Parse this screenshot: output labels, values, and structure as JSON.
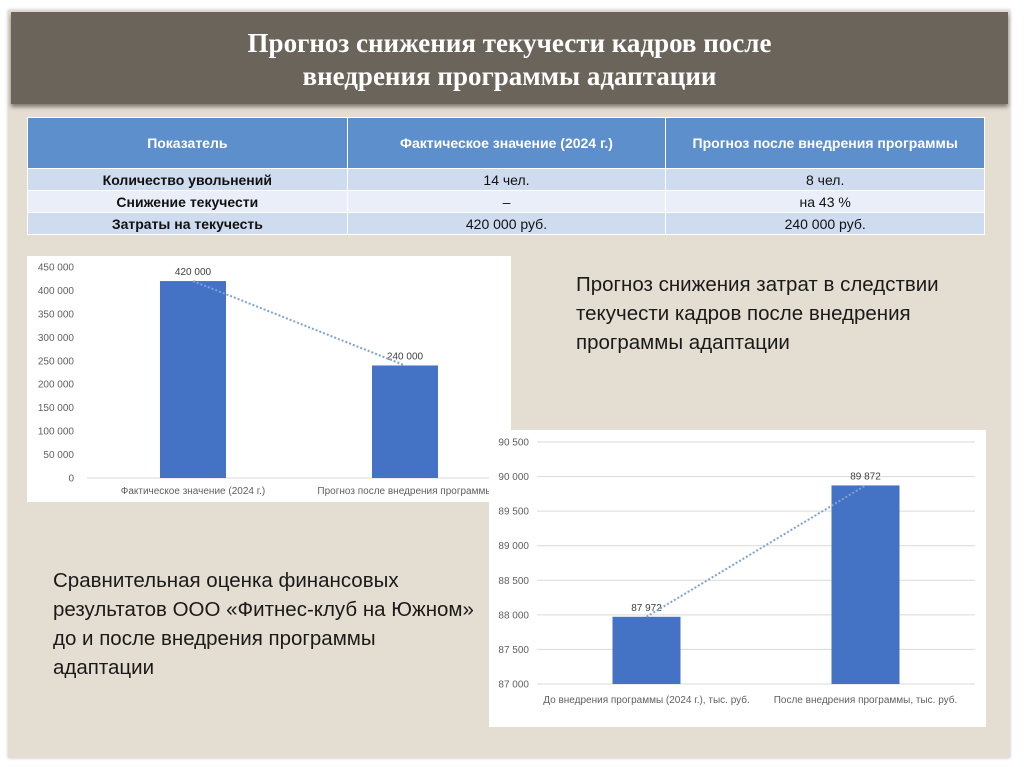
{
  "title": {
    "line1": "Прогноз снижения текучести кадров после",
    "line2": "внедрения программы адаптации"
  },
  "table": {
    "headers": [
      "Показатель",
      "Фактическое значение (2024 г.)",
      "Прогноз после внедрения программы"
    ],
    "rows": [
      [
        "Количество увольнений",
        "14 чел.",
        "8 чел."
      ],
      [
        "Снижение текучести",
        "–",
        "на 43 %"
      ],
      [
        "Затраты на текучесть",
        "420 000 руб.",
        "240 000 руб."
      ]
    ]
  },
  "note_right": "Прогноз снижения затрат в следствии текучести кадров после внедрения программы адаптации",
  "note_left": {
    "line1": "Сравнительная оценка финансовых",
    "line2": "результатов ООО «Фитнес-клуб на Южном»",
    "line3": "до и после внедрения программы",
    "line4": "адаптации"
  },
  "colors": {
    "bar": "#4472c4",
    "header": "#5d8fcd",
    "title_bg": "#6b645a",
    "slide_bg": "#e4ddd1"
  },
  "chart_data": [
    {
      "type": "bar",
      "categories": [
        "Фактическое значение (2024 г.)",
        "Прогноз после внедрения программы"
      ],
      "values": [
        420000,
        240000
      ],
      "value_labels": [
        "420 000",
        "240 000"
      ],
      "ylim": [
        0,
        450000
      ],
      "y_ticks": [
        "0",
        "50 000",
        "100 000",
        "150 000",
        "200 000",
        "250 000",
        "300 000",
        "350 000",
        "400 000",
        "450 000"
      ],
      "trendline": "dotted",
      "grid": false
    },
    {
      "type": "bar",
      "categories": [
        "До внедрения программы (2024 г.), тыс. руб.",
        "После внедрения программы, тыс. руб."
      ],
      "values": [
        87972,
        89872
      ],
      "value_labels": [
        "87 972",
        "89 872"
      ],
      "ylim": [
        87000,
        90500
      ],
      "y_ticks": [
        "87 000",
        "87 500",
        "88 000",
        "88 500",
        "89 000",
        "89 500",
        "90 000",
        "90 500"
      ],
      "trendline": "dotted",
      "grid": true
    }
  ]
}
